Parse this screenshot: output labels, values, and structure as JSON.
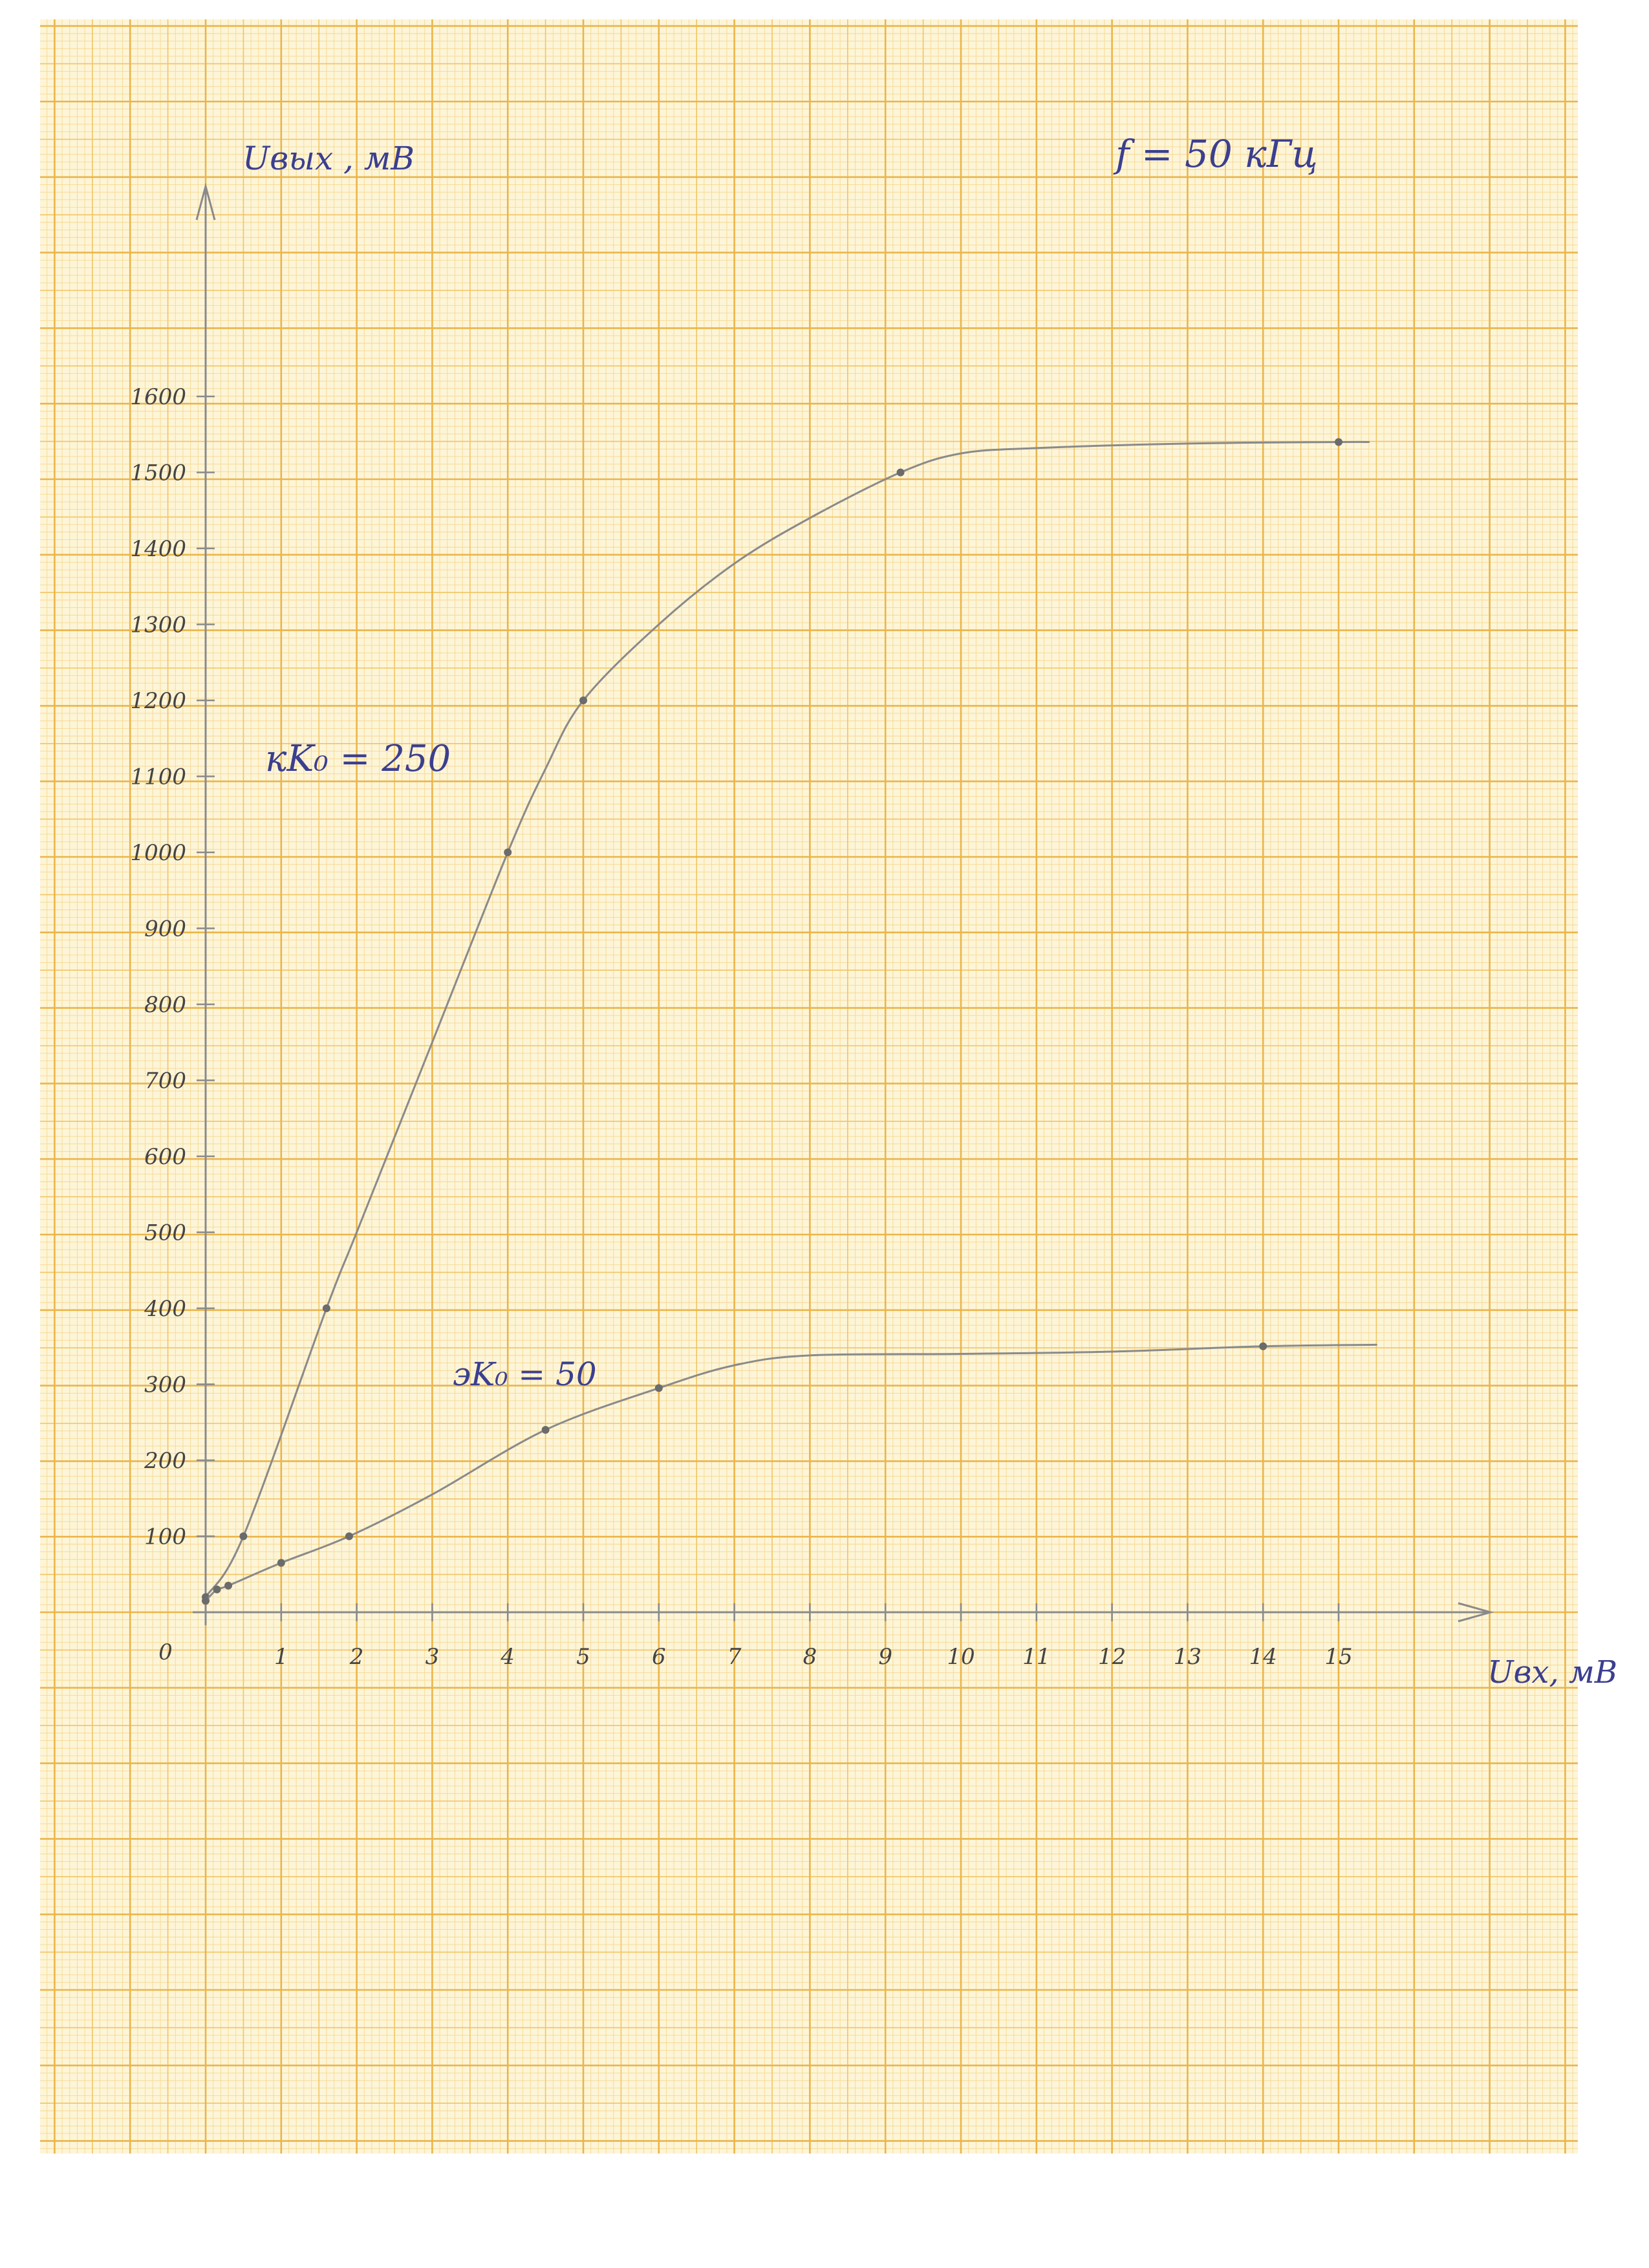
{
  "chart_data": {
    "type": "line",
    "annotation": "f = 50 кГц",
    "ylabel": "Uвых , мВ",
    "xlabel": "Uвх, мВ",
    "origin_label": "0",
    "xlim": [
      0,
      17
    ],
    "ylim": [
      0,
      1800
    ],
    "grid": true,
    "x_ticks": [
      1,
      2,
      3,
      4,
      5,
      6,
      7,
      8,
      9,
      10,
      11,
      12,
      13,
      14,
      15
    ],
    "y_ticks": [
      100,
      200,
      300,
      400,
      500,
      600,
      700,
      800,
      900,
      1000,
      1100,
      1200,
      1300,
      1400,
      1500,
      1600
    ],
    "series": [
      {
        "name": "кK₀ = 250",
        "color": "#8a8a8a",
        "points": [
          {
            "x": 0,
            "y": 20
          },
          {
            "x": 0.5,
            "y": 100
          },
          {
            "x": 1.6,
            "y": 400
          },
          {
            "x": 4,
            "y": 1000
          },
          {
            "x": 5,
            "y": 1200
          },
          {
            "x": 9.2,
            "y": 1500
          },
          {
            "x": 15,
            "y": 1540
          }
        ],
        "curve": [
          {
            "x": 0,
            "y": 20
          },
          {
            "x": 0.5,
            "y": 100
          },
          {
            "x": 1.6,
            "y": 400
          },
          {
            "x": 2,
            "y": 500
          },
          {
            "x": 3,
            "y": 750
          },
          {
            "x": 4,
            "y": 1000
          },
          {
            "x": 4.5,
            "y": 1110
          },
          {
            "x": 5,
            "y": 1200
          },
          {
            "x": 6,
            "y": 1300
          },
          {
            "x": 7,
            "y": 1380
          },
          {
            "x": 8,
            "y": 1440
          },
          {
            "x": 9.2,
            "y": 1500
          },
          {
            "x": 10,
            "y": 1525
          },
          {
            "x": 11,
            "y": 1532
          },
          {
            "x": 13,
            "y": 1538
          },
          {
            "x": 15,
            "y": 1540
          },
          {
            "x": 15.4,
            "y": 1540
          }
        ]
      },
      {
        "name": "эK₀ = 50",
        "color": "#8a8a8a",
        "points": [
          {
            "x": 0,
            "y": 15
          },
          {
            "x": 0.15,
            "y": 30
          },
          {
            "x": 0.3,
            "y": 35
          },
          {
            "x": 1,
            "y": 65
          },
          {
            "x": 1.9,
            "y": 100
          },
          {
            "x": 4.5,
            "y": 240
          },
          {
            "x": 6,
            "y": 295
          },
          {
            "x": 14,
            "y": 350
          }
        ],
        "curve": [
          {
            "x": 0,
            "y": 15
          },
          {
            "x": 0.15,
            "y": 30
          },
          {
            "x": 0.3,
            "y": 35
          },
          {
            "x": 1,
            "y": 65
          },
          {
            "x": 1.9,
            "y": 100
          },
          {
            "x": 3,
            "y": 155
          },
          {
            "x": 4.5,
            "y": 240
          },
          {
            "x": 6,
            "y": 295
          },
          {
            "x": 7,
            "y": 325
          },
          {
            "x": 8,
            "y": 338
          },
          {
            "x": 10,
            "y": 340
          },
          {
            "x": 12,
            "y": 343
          },
          {
            "x": 14,
            "y": 350
          },
          {
            "x": 15.5,
            "y": 352
          }
        ]
      }
    ]
  },
  "colors": {
    "paper": "#fdf5d8",
    "grid_fine": "#f6d890",
    "grid_mid": "#f1c463",
    "grid_major": "#eab54a",
    "pencil": "#8a8a8a",
    "ink": "#3b3f8f"
  }
}
